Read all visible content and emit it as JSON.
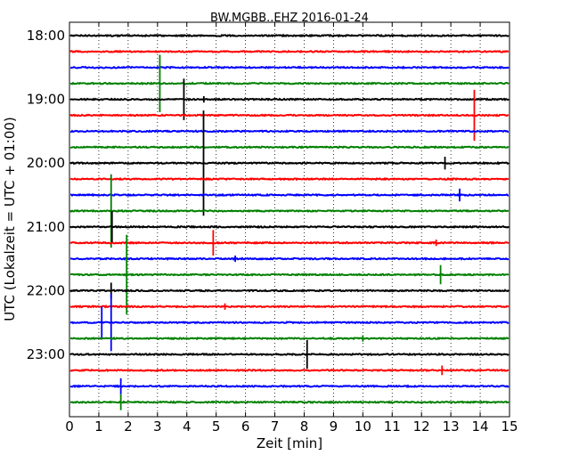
{
  "chart_data": {
    "type": "line",
    "title": "BW.MGBB..EHZ 2016-01-24",
    "xlabel": "Zeit  [min]",
    "ylabel": "UTC (Lokalzeit = UTC + 01:00)",
    "xlim": [
      0,
      15
    ],
    "xticks": [
      "0",
      "1",
      "2",
      "3",
      "4",
      "5",
      "6",
      "7",
      "8",
      "9",
      "10",
      "11",
      "12",
      "13",
      "14",
      "15"
    ],
    "yticks": [
      "18:00",
      "19:00",
      "20:00",
      "21:00",
      "22:00",
      "23:00"
    ],
    "grid": true,
    "trace_colors": [
      "#000000",
      "#ff0000",
      "#0000ff",
      "#008000"
    ],
    "traces": [
      {
        "start": "18:00",
        "spikes": []
      },
      {
        "start": "18:15",
        "spikes": []
      },
      {
        "start": "18:30",
        "spikes": []
      },
      {
        "start": "18:45",
        "spikes": [
          {
            "x": 3.08,
            "amp": 1.8
          }
        ]
      },
      {
        "start": "19:00",
        "spikes": [
          {
            "x": 3.9,
            "amp": 1.3
          },
          {
            "x": 4.58,
            "amp": 0.2
          }
        ]
      },
      {
        "start": "19:15",
        "spikes": [
          {
            "x": 13.8,
            "amp": 1.6
          }
        ]
      },
      {
        "start": "19:30",
        "spikes": []
      },
      {
        "start": "19:45",
        "spikes": []
      },
      {
        "start": "20:00",
        "spikes": [
          {
            "x": 4.57,
            "amp": 3.3
          },
          {
            "x": 12.8,
            "amp": 0.4
          }
        ]
      },
      {
        "start": "20:15",
        "spikes": []
      },
      {
        "start": "20:30",
        "spikes": [
          {
            "x": 13.3,
            "amp": 0.4
          }
        ]
      },
      {
        "start": "20:45",
        "spikes": [
          {
            "x": 1.42,
            "amp": 2.3
          }
        ]
      },
      {
        "start": "21:00",
        "spikes": [
          {
            "x": 1.45,
            "amp": 1.0
          }
        ]
      },
      {
        "start": "21:15",
        "spikes": [
          {
            "x": 4.9,
            "amp": 0.8
          },
          {
            "x": 12.5,
            "amp": 0.2
          }
        ]
      },
      {
        "start": "21:30",
        "spikes": [
          {
            "x": 5.65,
            "amp": 0.2
          }
        ]
      },
      {
        "start": "21:45",
        "spikes": [
          {
            "x": 1.95,
            "amp": 2.5
          },
          {
            "x": 12.65,
            "amp": 0.6
          }
        ]
      },
      {
        "start": "22:00",
        "spikes": [
          {
            "x": 1.42,
            "amp": 0.5
          }
        ]
      },
      {
        "start": "22:15",
        "spikes": [
          {
            "x": 5.3,
            "amp": 0.2
          }
        ]
      },
      {
        "start": "22:30",
        "spikes": [
          {
            "x": 1.1,
            "amp": 1.0
          },
          {
            "x": 1.42,
            "amp": 1.8
          }
        ]
      },
      {
        "start": "22:45",
        "spikes": [
          {
            "x": 10.0,
            "amp": 0.2
          }
        ]
      },
      {
        "start": "23:00",
        "spikes": [
          {
            "x": 8.1,
            "amp": 0.9
          }
        ]
      },
      {
        "start": "23:15",
        "spikes": [
          {
            "x": 12.7,
            "amp": 0.3
          }
        ]
      },
      {
        "start": "23:30",
        "spikes": [
          {
            "x": 1.75,
            "amp": 0.5
          }
        ]
      },
      {
        "start": "23:45",
        "spikes": [
          {
            "x": 1.75,
            "amp": 0.5
          }
        ]
      }
    ]
  }
}
